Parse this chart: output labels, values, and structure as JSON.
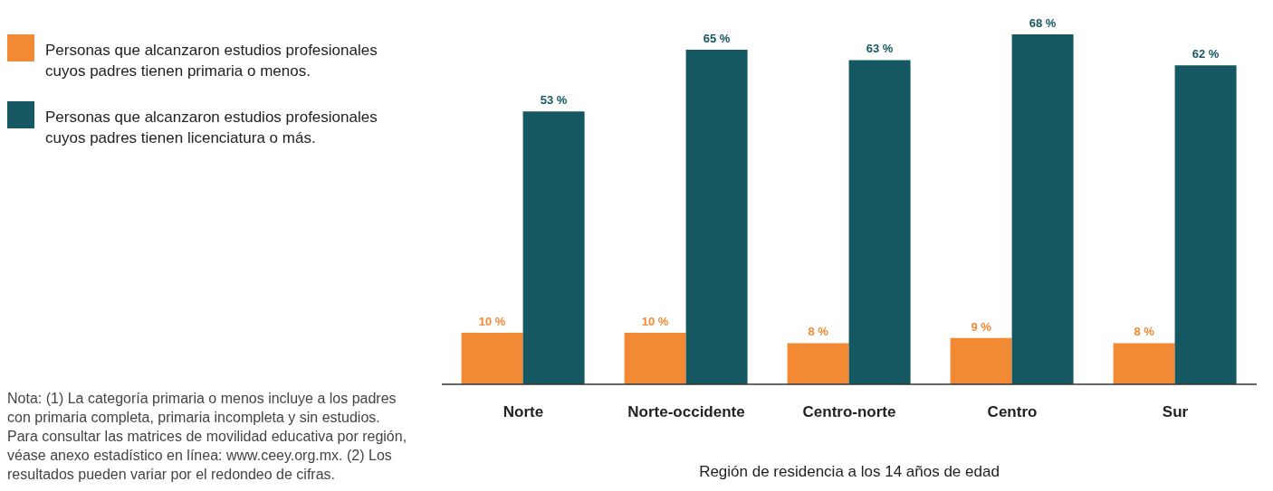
{
  "chart_data": {
    "type": "bar",
    "xlabel": "Región de residencia a los 14 años de edad",
    "categories": [
      "Norte",
      "Norte-occidente",
      "Centro-norte",
      "Centro",
      "Sur"
    ],
    "series": [
      {
        "name": "Personas que alcanzaron estudios profesionales cuyos padres tienen primaria o menos.",
        "color": "#f28a35",
        "values": [
          10,
          10,
          8,
          9,
          8
        ],
        "value_labels": [
          "10 %",
          "10 %",
          "8 %",
          "9 %",
          "8 %"
        ]
      },
      {
        "name": "Personas que alcanzaron estudios profesionales cuyos padres tienen licenciatura o más.",
        "color": "#165862",
        "values": [
          53,
          65,
          63,
          68,
          62
        ],
        "value_labels": [
          "53 %",
          "65 %",
          "63 %",
          "68 %",
          "62 %"
        ]
      }
    ],
    "legend": "top left",
    "grid": false,
    "annotations": [
      "Nota: (1) La categoría primaria o menos incluye a los padres con primaria completa, primaria incompleta y sin estudios. Para consultar las matrices de movilidad educativa por región, véase anexo estadístico en línea: www.ceey.org.mx. (2) Los resultados pueden variar por el redondeo de cifras."
    ]
  }
}
